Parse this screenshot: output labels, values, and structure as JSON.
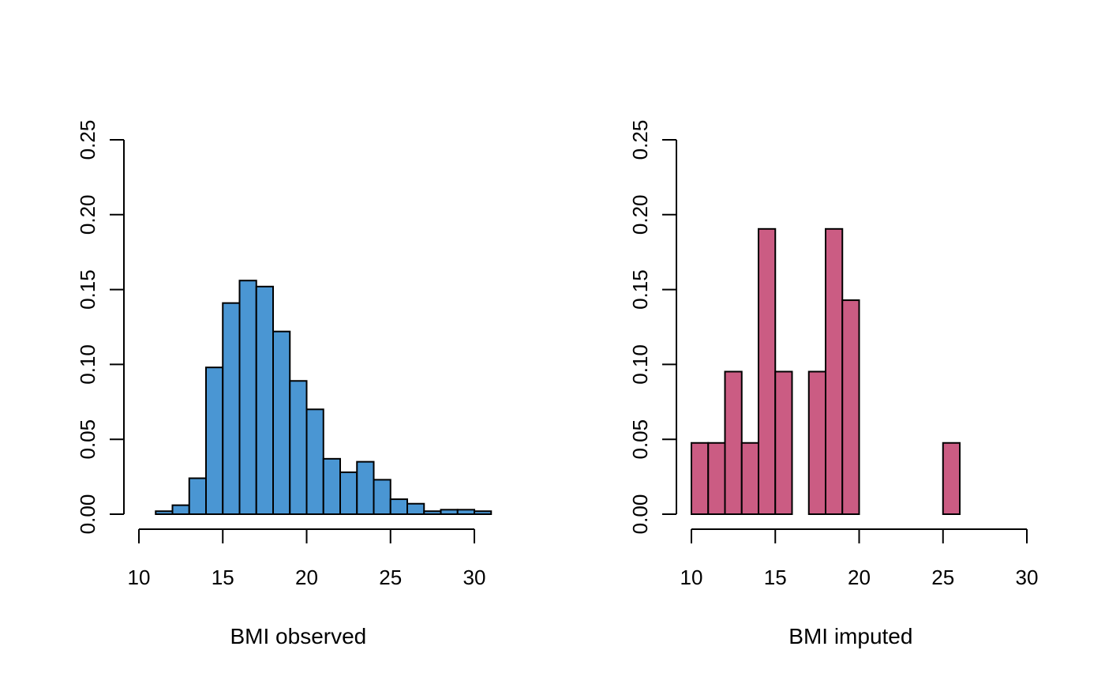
{
  "chart_data": [
    {
      "type": "bar",
      "xlabel": "BMI observed",
      "ylabel": "",
      "xlim": [
        10,
        30
      ],
      "ylim": [
        0,
        0.25
      ],
      "x_ticks": [
        "10",
        "15",
        "20",
        "25",
        "30"
      ],
      "y_ticks": [
        "0.00",
        "0.05",
        "0.10",
        "0.15",
        "0.20",
        "0.25"
      ],
      "bar_color": "#4A96D3",
      "bin_width": 1,
      "bins_start": [
        11,
        12,
        13,
        14,
        15,
        16,
        17,
        18,
        19,
        20,
        21,
        22,
        23,
        24,
        25,
        26,
        27,
        28,
        29,
        30
      ],
      "values": [
        0.002,
        0.006,
        0.024,
        0.098,
        0.141,
        0.156,
        0.152,
        0.122,
        0.089,
        0.07,
        0.037,
        0.028,
        0.035,
        0.023,
        0.01,
        0.007,
        0.002,
        0.003,
        0.003,
        0.002
      ]
    },
    {
      "type": "bar",
      "xlabel": "BMI imputed",
      "ylabel": "",
      "xlim": [
        10,
        30
      ],
      "ylim": [
        0,
        0.25
      ],
      "x_ticks": [
        "10",
        "15",
        "20",
        "25",
        "30"
      ],
      "y_ticks": [
        "0.00",
        "0.05",
        "0.10",
        "0.15",
        "0.20",
        "0.25"
      ],
      "bar_color": "#CB5C83",
      "bin_width": 1,
      "bins_start": [
        10,
        11,
        12,
        13,
        14,
        15,
        16,
        17,
        18,
        19,
        20,
        21,
        22,
        23,
        24,
        25
      ],
      "values": [
        0.0476,
        0.0476,
        0.0952,
        0.0476,
        0.1905,
        0.0952,
        0,
        0.0952,
        0.1905,
        0.1429,
        0,
        0,
        0,
        0,
        0,
        0.0476
      ]
    }
  ]
}
